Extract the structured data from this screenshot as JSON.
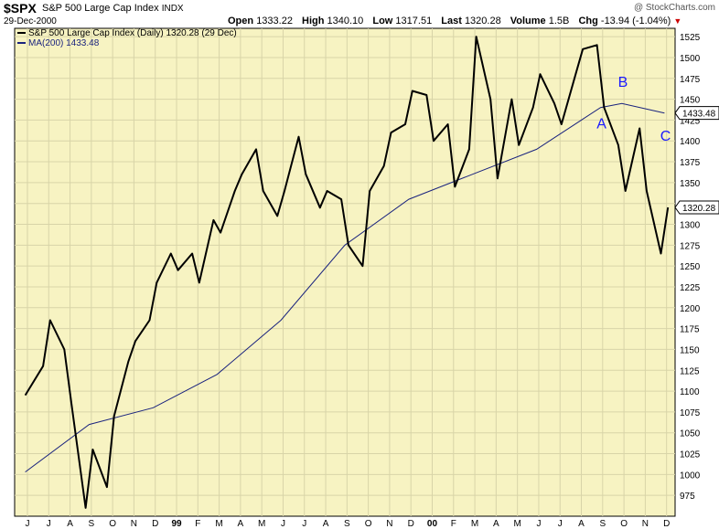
{
  "header": {
    "symbol": "$SPX",
    "name": "S&P 500 Large Cap Index",
    "exchange": "INDX",
    "date": "29-Dec-2000",
    "copyright": "@ StockCharts.com",
    "open_label": "Open",
    "open": "1333.22",
    "high_label": "High",
    "high": "1340.10",
    "low_label": "Low",
    "low": "1317.51",
    "last_label": "Last",
    "last": "1320.28",
    "volume_label": "Volume",
    "volume": "1.5B",
    "chg_label": "Chg",
    "chg": "-13.94 (-1.04%)",
    "chg_icon": "down-triangle-icon"
  },
  "chart_data": {
    "type": "line",
    "legend": [
      {
        "name": "S&P 500 Large Cap Index (Daily) 1320.28 (29 Dec)",
        "color": "#000000"
      },
      {
        "name": "MA(200) 1433.48",
        "color": "#1a237e"
      }
    ],
    "ylim": [
      950,
      1535
    ],
    "y_ticks": [
      975,
      1000,
      1025,
      1050,
      1075,
      1100,
      1125,
      1150,
      1175,
      1200,
      1225,
      1250,
      1275,
      1300,
      1325,
      1350,
      1375,
      1400,
      1425,
      1450,
      1475,
      1500,
      1525
    ],
    "x_ticks": [
      "J",
      "J",
      "A",
      "S",
      "O",
      "N",
      "D",
      "99",
      "F",
      "M",
      "A",
      "M",
      "J",
      "J",
      "A",
      "S",
      "O",
      "N",
      "D",
      "00",
      "F",
      "M",
      "A",
      "M",
      "J",
      "J",
      "A",
      "S",
      "O",
      "N",
      "D"
    ],
    "last_value_label": "1320.28",
    "ma_value_label": "1433.48",
    "annotations": [
      {
        "text": "A",
        "x": "Sep 2000",
        "y": 1415
      },
      {
        "text": "B",
        "x": "Oct 2000",
        "y": 1465
      },
      {
        "text": "C",
        "x": "Dec 2000",
        "y": 1400
      }
    ],
    "series": [
      {
        "name": "S&P 500 Large Cap Index (Daily) 1320.28 (29 Dec)",
        "x": [
          "Jun 1998",
          "Jul 1998",
          "Jul 1998",
          "Aug 1998",
          "Aug 1998",
          "Sep 1998",
          "Sep 1998",
          "Oct 1998",
          "Oct 1998",
          "Nov 1998",
          "Nov 1998",
          "Dec 1998",
          "Dec 1998",
          "Jan 1999",
          "Jan 1999",
          "Feb 1999",
          "Feb 1999",
          "Mar 1999",
          "Mar 1999",
          "Apr 1999",
          "Apr 1999",
          "May 1999",
          "May 1999",
          "Jun 1999",
          "Jun 1999",
          "Jul 1999",
          "Jul 1999",
          "Aug 1999",
          "Aug 1999",
          "Sep 1999",
          "Sep 1999",
          "Oct 1999",
          "Oct 1999",
          "Nov 1999",
          "Nov 1999",
          "Dec 1999",
          "Dec 1999",
          "Jan 2000",
          "Jan 2000",
          "Feb 2000",
          "Feb 2000",
          "Mar 2000",
          "Mar 2000",
          "Apr 2000",
          "Apr 2000",
          "May 2000",
          "May 2000",
          "Jun 2000",
          "Jun 2000",
          "Jul 2000",
          "Jul 2000",
          "Aug 2000",
          "Aug 2000",
          "Sep 2000",
          "Sep 2000",
          "Oct 2000",
          "Oct 2000",
          "Nov 2000",
          "Nov 2000",
          "Dec 2000",
          "Dec 2000"
        ],
        "values": [
          1095,
          1130,
          1185,
          1150,
          1085,
          960,
          1030,
          985,
          1070,
          1135,
          1160,
          1185,
          1230,
          1265,
          1245,
          1265,
          1230,
          1305,
          1290,
          1340,
          1360,
          1390,
          1340,
          1310,
          1340,
          1405,
          1360,
          1320,
          1340,
          1330,
          1275,
          1250,
          1340,
          1370,
          1410,
          1420,
          1460,
          1455,
          1400,
          1420,
          1345,
          1390,
          1525,
          1450,
          1355,
          1450,
          1395,
          1440,
          1480,
          1445,
          1420,
          1480,
          1510,
          1515,
          1440,
          1395,
          1340,
          1415,
          1340,
          1265,
          1320.28
        ]
      },
      {
        "name": "MA(200) 1433.48",
        "x": [
          "Jun 1998",
          "Sep 1998",
          "Dec 1998",
          "Mar 1999",
          "Jun 1999",
          "Sep 1999",
          "Dec 1999",
          "Mar 2000",
          "Jun 2000",
          "Sep 2000",
          "Oct 2000",
          "Dec 2000"
        ],
        "values": [
          1003,
          1060,
          1080,
          1120,
          1185,
          1275,
          1330,
          1360,
          1390,
          1440,
          1445,
          1433.48
        ]
      }
    ]
  },
  "colors": {
    "plot_bg": "#f7f3c2",
    "grid": "#d8d4a8",
    "price_line": "#000000",
    "ma_line": "#1a237e",
    "annotation": "#1a1aff",
    "chg_down": "#cc0000"
  }
}
